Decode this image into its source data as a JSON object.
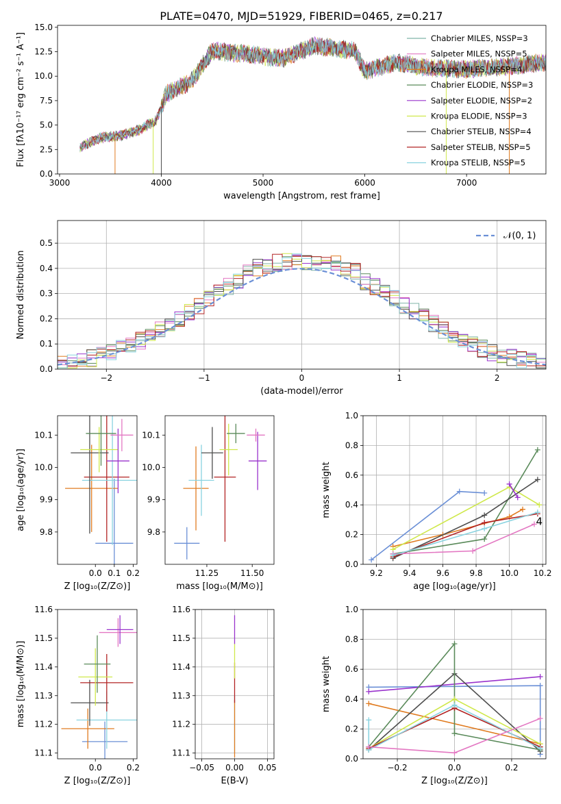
{
  "figure": {
    "title": "PLATE=0470, MJD=51929, FIBERID=0465, z=0.217"
  },
  "chart_data": [
    {
      "id": "spectrum",
      "type": "line",
      "xlabel": "wavelength [Angstrom, rest frame]",
      "ylabel": "Flux [fλ10⁻¹⁷ erg cm⁻² s⁻¹ A⁻¹]",
      "xlim": [
        2980,
        7780
      ],
      "ylim": [
        0,
        15.2
      ],
      "xticks": [
        3000,
        4000,
        5000,
        6000,
        7000
      ],
      "yticks": [
        0.0,
        2.5,
        5.0,
        7.5,
        10.0,
        12.5,
        15.0
      ],
      "xtick_labels": [
        "3000",
        "4000",
        "5000",
        "6000",
        "7000"
      ],
      "ytick_labels": [
        "0.0",
        "2.5",
        "5.0",
        "7.5",
        "10.0",
        "12.5",
        "15.0"
      ],
      "legend_position": "upper-right",
      "continuum": [
        [
          3200,
          2.7
        ],
        [
          3400,
          3.7
        ],
        [
          3600,
          3.9
        ],
        [
          3800,
          4.6
        ],
        [
          3950,
          5.5
        ],
        [
          4050,
          8.2
        ],
        [
          4300,
          9.5
        ],
        [
          4500,
          12.6
        ],
        [
          4800,
          12.3
        ],
        [
          5200,
          11.8
        ],
        [
          5500,
          13.1
        ],
        [
          5900,
          12.6
        ],
        [
          6000,
          10.5
        ],
        [
          6300,
          11.4
        ],
        [
          6600,
          10.9
        ],
        [
          7000,
          10.7
        ],
        [
          7400,
          11.0
        ],
        [
          7780,
          11.4
        ]
      ],
      "series": [
        {
          "name": "Chabrier MILES, NSSP=3",
          "color": "#7fb3a8"
        },
        {
          "name": "Salpeter MILES, NSSP=5",
          "color": "#e377c2"
        },
        {
          "name": "Kroupa MILES, NSSP=4",
          "color": "#e07b20"
        },
        {
          "name": "Chabrier ELODIE, NSSP=3",
          "color": "#5a8a5a"
        },
        {
          "name": "Salpeter ELODIE, NSSP=2",
          "color": "#9932cc"
        },
        {
          "name": "Kroupa ELODIE, NSSP=3",
          "color": "#cfe84a"
        },
        {
          "name": "Chabrier STELIB, NSSP=4",
          "color": "#4d4d4d"
        },
        {
          "name": "Salpeter STELIB, NSSP=5",
          "color": "#b22222"
        },
        {
          "name": "Kroupa STELIB, NSSP=5",
          "color": "#89d3e0"
        }
      ]
    },
    {
      "id": "residual-histogram",
      "type": "histogram",
      "xlabel": "(data-model)/error",
      "ylabel": "Normed distribution",
      "xlim": [
        -2.5,
        2.5
      ],
      "ylim": [
        0,
        0.59
      ],
      "xticks": [
        -2,
        -1,
        0,
        1,
        2
      ],
      "yticks": [
        0.0,
        0.1,
        0.2,
        0.3,
        0.4,
        0.5
      ],
      "xtick_labels": [
        "−2",
        "−1",
        "0",
        "1",
        "2"
      ],
      "ytick_labels": [
        "0.0",
        "0.1",
        "0.2",
        "0.3",
        "0.4",
        "0.5"
      ],
      "grid": true,
      "legend_position": "upper-right",
      "reference": {
        "label": "𝒩(0, 1)",
        "color": "#6a8fd6"
      },
      "bins": {
        "start": -2.5,
        "width": 0.1
      }
    },
    {
      "id": "age-vs-Z",
      "type": "errorbar",
      "xlabel": "Z [log₁₀(Z/Z⊙)]",
      "ylabel": "age  [log₁₀(age/yr)]",
      "xlim": [
        -0.2,
        0.22
      ],
      "ylim": [
        9.7,
        10.16
      ],
      "xticks": [
        0.0,
        0.1,
        0.2
      ],
      "yticks": [
        9.8,
        9.9,
        10.0,
        10.1
      ],
      "xtick_labels": [
        "0.0",
        "0.1",
        "0.2"
      ],
      "ytick_labels": [
        "9.8",
        "9.9",
        "10.0",
        "10.1"
      ],
      "points": [
        {
          "color": "#6a8fd6",
          "x": 0.1,
          "xerr": 0.1,
          "y": 9.765,
          "yerr": 0.2
        },
        {
          "color": "#e07b20",
          "x": -0.02,
          "xerr": 0.14,
          "y": 9.935,
          "yerr": 0.135
        },
        {
          "color": "#b22222",
          "x": 0.06,
          "xerr": 0.12,
          "y": 9.97,
          "yerr": 0.2
        },
        {
          "color": "#89d3e0",
          "x": 0.09,
          "xerr": 0.16,
          "y": 9.96,
          "yerr": 0.2
        },
        {
          "color": "#4d4d4d",
          "x": -0.03,
          "xerr": 0.1,
          "y": 10.045,
          "yerr": 0.25
        },
        {
          "color": "#cfe84a",
          "x": 0.02,
          "xerr": 0.1,
          "y": 10.055,
          "yerr": 0.07
        },
        {
          "color": "#9932cc",
          "x": 0.12,
          "xerr": 0.06,
          "y": 10.02,
          "yerr": 0.1
        },
        {
          "color": "#5a8a5a",
          "x": 0.03,
          "xerr": 0.08,
          "y": 10.105,
          "yerr": 0.1
        },
        {
          "color": "#e377c2",
          "x": 0.14,
          "xerr": 0.06,
          "y": 10.1,
          "yerr": 0.05
        }
      ]
    },
    {
      "id": "age-vs-mass",
      "type": "errorbar",
      "xlabel": "mass [log₁₀(M/M⊙)]",
      "ylabel": "",
      "xlim": [
        11.02,
        11.62
      ],
      "ylim": [
        9.7,
        10.16
      ],
      "xticks": [
        11.25,
        11.5
      ],
      "yticks": [
        9.8,
        9.9,
        10.0,
        10.1
      ],
      "xtick_labels": [
        "11.25",
        "11.50"
      ],
      "ytick_labels": [
        "9.8",
        "9.9",
        "10.0",
        "10.1"
      ],
      "points": [
        {
          "color": "#6a8fd6",
          "x": 11.14,
          "xerr": 0.07,
          "y": 9.765,
          "yerr": 0.05
        },
        {
          "color": "#e07b20",
          "x": 11.19,
          "xerr": 0.07,
          "y": 9.935,
          "yerr": 0.13
        },
        {
          "color": "#89d3e0",
          "x": 11.22,
          "xerr": 0.07,
          "y": 9.96,
          "yerr": 0.11
        },
        {
          "color": "#b22222",
          "x": 11.35,
          "xerr": 0.06,
          "y": 9.97,
          "yerr": 0.2
        },
        {
          "color": "#4d4d4d",
          "x": 11.28,
          "xerr": 0.06,
          "y": 10.045,
          "yerr": 0.08
        },
        {
          "color": "#cfe84a",
          "x": 11.37,
          "xerr": 0.05,
          "y": 10.055,
          "yerr": 0.08
        },
        {
          "color": "#9932cc",
          "x": 11.53,
          "xerr": 0.05,
          "y": 10.02,
          "yerr": 0.09
        },
        {
          "color": "#5a8a5a",
          "x": 11.41,
          "xerr": 0.05,
          "y": 10.105,
          "yerr": 0.03
        },
        {
          "color": "#e377c2",
          "x": 11.52,
          "xerr": 0.05,
          "y": 10.1,
          "yerr": 0.02
        }
      ]
    },
    {
      "id": "mass-weight-vs-age",
      "type": "line",
      "xlabel": "age  [log₁₀(age/yr)]",
      "ylabel": "mass weight",
      "xlim": [
        9.12,
        10.22
      ],
      "ylim": [
        0,
        1.0
      ],
      "grid": true,
      "xticks": [
        9.2,
        9.4,
        9.6,
        9.8,
        10.0,
        10.2
      ],
      "yticks": [
        0.0,
        0.2,
        0.4,
        0.6,
        0.8,
        1.0
      ],
      "xtick_labels": [
        "9.2",
        "9.4",
        "9.6",
        "9.8",
        "10.0",
        "10.2"
      ],
      "ytick_labels": [
        "0.0",
        "0.2",
        "0.4",
        "0.6",
        "0.8",
        "1.0"
      ],
      "series": [
        {
          "color": "#6a8fd6",
          "x": [
            9.17,
            9.7,
            9.85
          ],
          "y": [
            0.03,
            0.49,
            0.48
          ]
        },
        {
          "color": "#e07b20",
          "x": [
            9.3,
            9.6,
            10.0,
            10.08
          ],
          "y": [
            0.12,
            0.2,
            0.32,
            0.37
          ]
        },
        {
          "color": "#cfe84a",
          "x": [
            9.3,
            10.0,
            10.18
          ],
          "y": [
            0.1,
            0.52,
            0.4
          ]
        },
        {
          "color": "#5a8a5a",
          "x": [
            9.3,
            9.85,
            10.17
          ],
          "y": [
            0.07,
            0.17,
            0.77
          ]
        },
        {
          "color": "#4d4d4d",
          "x": [
            9.3,
            9.85,
            10.17
          ],
          "y": [
            0.04,
            0.33,
            0.57
          ]
        },
        {
          "color": "#b22222",
          "x": [
            9.3,
            9.85,
            10.17
          ],
          "y": [
            0.05,
            0.28,
            0.34
          ]
        },
        {
          "color": "#e377c2",
          "x": [
            9.3,
            9.78,
            10.15
          ],
          "y": [
            0.07,
            0.09,
            0.27
          ]
        },
        {
          "color": "#89d3e0",
          "x": [
            9.3,
            9.85,
            10.17
          ],
          "y": [
            0.06,
            0.24,
            0.35
          ]
        },
        {
          "color": "#9932cc",
          "x": [
            10.0,
            10.05
          ],
          "y": [
            0.54,
            0.45
          ]
        }
      ],
      "annotation": "4"
    },
    {
      "id": "mass-vs-Z",
      "type": "errorbar",
      "xlabel": "Z [log₁₀(Z/Z⊙)]",
      "ylabel": "mass [log₁₀(M/M⊙)]",
      "xlim": [
        -0.2,
        0.22
      ],
      "ylim": [
        11.08,
        11.6
      ],
      "xticks": [
        0.0,
        0.2
      ],
      "yticks": [
        11.1,
        11.2,
        11.3,
        11.4,
        11.5,
        11.6
      ],
      "xtick_labels": [
        "0.0",
        "0.2"
      ],
      "ytick_labels": [
        "11.1",
        "11.2",
        "11.3",
        "11.4",
        "11.5",
        "11.6"
      ],
      "points": [
        {
          "color": "#6a8fd6",
          "x": 0.05,
          "xerr": 0.12,
          "y": 11.14,
          "yerr": 0.07
        },
        {
          "color": "#e07b20",
          "x": -0.04,
          "xerr": 0.14,
          "y": 11.185,
          "yerr": 0.07
        },
        {
          "color": "#89d3e0",
          "x": 0.06,
          "xerr": 0.16,
          "y": 11.215,
          "yerr": 0.1
        },
        {
          "color": "#4d4d4d",
          "x": -0.03,
          "xerr": 0.1,
          "y": 11.275,
          "yerr": 0.08
        },
        {
          "color": "#b22222",
          "x": 0.06,
          "xerr": 0.14,
          "y": 11.345,
          "yerr": 0.1
        },
        {
          "color": "#cfe84a",
          "x": 0.0,
          "xerr": 0.09,
          "y": 11.365,
          "yerr": 0.1
        },
        {
          "color": "#5a8a5a",
          "x": 0.01,
          "xerr": 0.07,
          "y": 11.41,
          "yerr": 0.1
        },
        {
          "color": "#e377c2",
          "x": 0.12,
          "xerr": 0.1,
          "y": 11.52,
          "yerr": 0.05
        },
        {
          "color": "#9932cc",
          "x": 0.13,
          "xerr": 0.07,
          "y": 11.53,
          "yerr": 0.05
        }
      ]
    },
    {
      "id": "mass-vs-ebv",
      "type": "errorbar",
      "xlabel": "E(B-V)",
      "ylabel": "",
      "xlim": [
        -0.06,
        0.06
      ],
      "ylim": [
        11.08,
        11.6
      ],
      "grid": true,
      "xticks": [
        -0.05,
        0.0,
        0.05
      ],
      "yticks": [
        11.1,
        11.2,
        11.3,
        11.4,
        11.5,
        11.6
      ],
      "xtick_labels": [
        "−0.05",
        "0.00",
        "0.05"
      ],
      "ytick_labels": [
        "11.1",
        "11.2",
        "11.3",
        "11.4",
        "11.5",
        "11.6"
      ],
      "points": [
        {
          "color": "#89d3e0",
          "x": 0.0,
          "xerr": 0,
          "y": 11.2,
          "yerr": 0.1
        },
        {
          "color": "#e07b20",
          "x": 0.0,
          "xerr": 0,
          "y": 11.185,
          "yerr": 0.1
        },
        {
          "color": "#b22222",
          "x": 0.0,
          "xerr": 0,
          "y": 11.345,
          "yerr": 0.07
        },
        {
          "color": "#cfe84a",
          "x": 0.0,
          "xerr": 0,
          "y": 11.42,
          "yerr": 0.06
        },
        {
          "color": "#9932cc",
          "x": 0.0,
          "xerr": 0,
          "y": 11.53,
          "yerr": 0.05
        }
      ]
    },
    {
      "id": "mass-weight-vs-Z",
      "type": "line",
      "xlabel": "Z [log₁₀(Z/Z⊙)]",
      "ylabel": "mass weight",
      "xlim": [
        -0.32,
        0.32
      ],
      "ylim": [
        0,
        1.0
      ],
      "grid": true,
      "xticks": [
        -0.2,
        0.0,
        0.2
      ],
      "yticks": [
        0.0,
        0.2,
        0.4,
        0.6,
        0.8,
        1.0
      ],
      "xtick_labels": [
        "−0.2",
        "0.0",
        "0.2"
      ],
      "ytick_labels": [
        "0.0",
        "0.2",
        "0.4",
        "0.6",
        "0.8",
        "1.0"
      ],
      "series": [
        {
          "color": "#6a8fd6",
          "x": [
            -0.3,
            0.3,
            0.3
          ],
          "y": [
            0.48,
            0.49,
            0.03
          ]
        },
        {
          "color": "#9932cc",
          "x": [
            -0.3,
            0.3
          ],
          "y": [
            0.45,
            0.55
          ]
        },
        {
          "color": "#e07b20",
          "x": [
            -0.3,
            0.3
          ],
          "y": [
            0.37,
            0.1
          ]
        },
        {
          "color": "#4d4d4d",
          "x": [
            -0.3,
            0.0,
            0.3
          ],
          "y": [
            0.06,
            0.57,
            0.05
          ]
        },
        {
          "color": "#5a8a5a",
          "x": [
            -0.3,
            0.0,
            0.0,
            0.3
          ],
          "y": [
            0.08,
            0.77,
            0.17,
            0.06
          ]
        },
        {
          "color": "#cfe84a",
          "x": [
            -0.3,
            0.0,
            0.3
          ],
          "y": [
            0.07,
            0.4,
            0.1
          ]
        },
        {
          "color": "#b22222",
          "x": [
            -0.3,
            0.0,
            0.3
          ],
          "y": [
            0.07,
            0.34,
            0.08
          ]
        },
        {
          "color": "#89d3e0",
          "x": [
            -0.3,
            -0.3,
            0.0,
            0.3
          ],
          "y": [
            0.26,
            0.06,
            0.36,
            0.07
          ]
        },
        {
          "color": "#e377c2",
          "x": [
            -0.3,
            0.0,
            0.3
          ],
          "y": [
            0.08,
            0.04,
            0.27
          ]
        }
      ]
    }
  ]
}
